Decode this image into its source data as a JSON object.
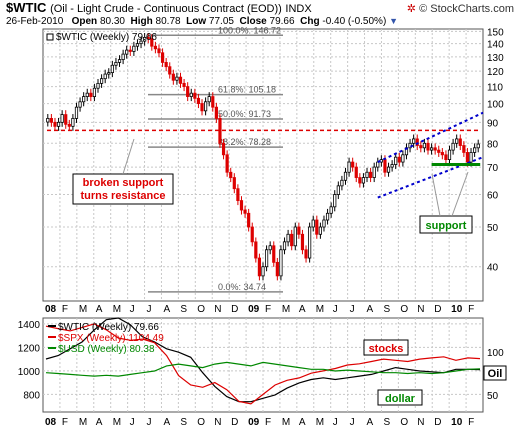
{
  "header": {
    "symbol": "$WTIC",
    "name": "(Oil - Light Crude - Continuous Contract (EOD))",
    "exchange": "INDX",
    "brand": "© StockCharts.com",
    "date": "26-Feb-2010",
    "open_label": "Open",
    "open": "80.30",
    "high_label": "High",
    "high": "80.78",
    "low_label": "Low",
    "low": "77.05",
    "close_label": "Close",
    "close": "79.66",
    "chg_label": "Chg",
    "chg": "-0.40 (-0.50%)",
    "arrow": "▼"
  },
  "colors": {
    "up": "#000000",
    "down": "#dd0000",
    "accent": "#0000cc",
    "support": "#008800"
  },
  "chart_data": [
    {
      "type": "candlestick",
      "legend": "$WTIC (Weekly) 79.66",
      "x_tick_labels": [
        "08",
        "F",
        "M",
        "A",
        "M",
        "J",
        "J",
        "A",
        "S",
        "O",
        "N",
        "D",
        "09",
        "F",
        "M",
        "A",
        "M",
        "J",
        "J",
        "A",
        "S",
        "O",
        "N",
        "D",
        "10",
        "F"
      ],
      "y_tick_labels": [
        "150",
        "140",
        "130",
        "120",
        "110",
        "100",
        "90",
        "80",
        "70",
        "60",
        "50",
        "40"
      ],
      "y_ticks": [
        150,
        140,
        130,
        120,
        110,
        100,
        90,
        80,
        70,
        60,
        50,
        40
      ],
      "y_scale": "log",
      "ylim": [
        33,
        152
      ],
      "fib_levels": [
        {
          "label": "100.0%: 146.72",
          "value": 146.72
        },
        {
          "label": "61.8%: 105.18",
          "value": 105.18
        },
        {
          "label": "50.0%: 91.73",
          "value": 91.73
        },
        {
          "label": "38.2%: 78.28",
          "value": 78.28
        },
        {
          "label": "0.0%: 34.74",
          "value": 34.74
        }
      ],
      "resistance_level": 86,
      "annotations": [
        {
          "text": "broken support turns resistance",
          "lines": [
            "broken support",
            "turns resistance"
          ]
        },
        {
          "text": "support"
        }
      ],
      "weekly_closes": [
        92,
        90,
        88,
        90,
        94,
        89,
        88,
        92,
        98,
        101,
        104,
        106,
        104,
        109,
        112,
        115,
        118,
        119,
        124,
        126,
        128,
        132,
        135,
        134,
        138,
        140,
        142,
        145,
        144,
        138,
        136,
        133,
        126,
        123,
        118,
        114,
        116,
        112,
        110,
        104,
        106,
        103,
        100,
        96,
        101,
        104,
        98,
        92,
        80,
        75,
        68,
        66,
        62,
        58,
        55,
        54,
        50,
        46,
        42,
        38,
        40,
        44,
        45,
        41,
        38,
        44,
        46,
        48,
        45,
        50,
        48,
        44,
        42,
        50,
        52,
        48,
        50,
        52,
        54,
        56,
        60,
        63,
        65,
        68,
        72,
        70,
        66,
        64,
        66,
        68,
        66,
        70,
        72,
        73,
        68,
        70,
        71,
        74,
        72,
        75,
        78,
        80,
        82,
        79,
        78,
        80,
        77,
        78,
        77,
        76,
        75,
        73,
        77,
        80,
        82,
        79,
        76,
        72,
        76,
        78,
        79.66
      ]
    },
    {
      "type": "line",
      "legend": "",
      "x_tick_labels": [
        "08",
        "F",
        "M",
        "A",
        "M",
        "J",
        "J",
        "A",
        "S",
        "O",
        "N",
        "D",
        "09",
        "F",
        "M",
        "A",
        "M",
        "J",
        "J",
        "A",
        "S",
        "O",
        "N",
        "D",
        "10",
        "F"
      ],
      "y_left_ticks": [
        1400,
        1200,
        1000,
        800
      ],
      "y_right_ticks": [
        100,
        75,
        50
      ],
      "series": [
        {
          "name": "$WTIC (Weekly) 79.66",
          "color": "#000000",
          "axis": "right",
          "values": [
            92,
            96,
            104,
            112,
            126,
            138,
            140,
            132,
            118,
            112,
            104,
            100,
            94,
            76,
            60,
            48,
            42,
            42,
            46,
            50,
            58,
            64,
            68,
            70,
            68,
            70,
            72,
            74,
            78,
            82,
            80,
            78,
            77,
            76,
            80,
            80,
            79.66
          ]
        },
        {
          "name": "$SPX (Weekly) 1104.49",
          "color": "#dd0000",
          "axis": "left",
          "values": [
            1380,
            1360,
            1340,
            1370,
            1400,
            1350,
            1280,
            1260,
            1270,
            1240,
            1130,
            960,
            880,
            860,
            900,
            840,
            740,
            720,
            800,
            880,
            920,
            940,
            980,
            1000,
            1020,
            1050,
            1060,
            1080,
            1100,
            1090,
            1080,
            1100,
            1110,
            1120,
            1090,
            1110,
            1104.49
          ]
        },
        {
          "name": "$USD (Weekly) 80.38",
          "color": "#008800",
          "axis": "right",
          "values": [
            76,
            75,
            74,
            73,
            72,
            73,
            72,
            74,
            76,
            78,
            84,
            86,
            84,
            82,
            86,
            88,
            86,
            84,
            88,
            86,
            84,
            82,
            80,
            80,
            78,
            79,
            78,
            77,
            76,
            76,
            75,
            76,
            75,
            76,
            78,
            80,
            80.38
          ]
        }
      ],
      "annotations": [
        {
          "text": "stocks"
        },
        {
          "text": "dollar"
        },
        {
          "text": "Oil"
        }
      ]
    }
  ]
}
